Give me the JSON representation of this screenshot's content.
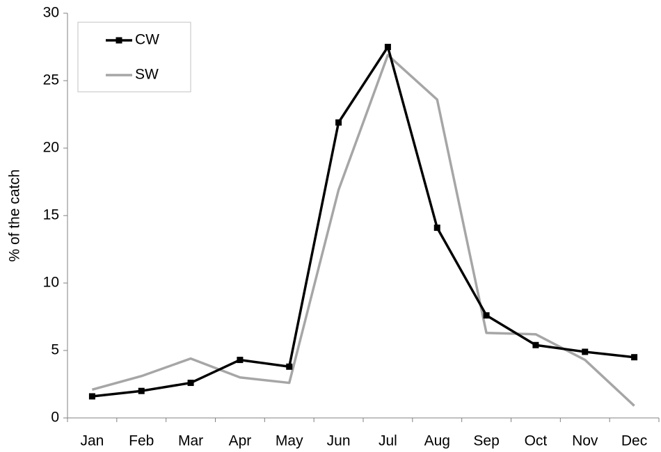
{
  "chart_data": {
    "type": "line",
    "y_label": "% of the catch",
    "categories": [
      "Jan",
      "Feb",
      "Mar",
      "Apr",
      "May",
      "Jun",
      "Jul",
      "Aug",
      "Sep",
      "Oct",
      "Nov",
      "Dec"
    ],
    "series": [
      {
        "name": "CW",
        "color": "#000000",
        "marker": "square",
        "values": [
          1.6,
          2.0,
          2.6,
          4.3,
          3.8,
          21.9,
          27.5,
          14.1,
          7.6,
          5.4,
          4.9,
          4.5
        ]
      },
      {
        "name": "SW",
        "color": "#a6a6a6",
        "marker": "none",
        "values": [
          2.1,
          3.1,
          4.4,
          3.0,
          2.6,
          16.9,
          26.9,
          23.6,
          6.3,
          6.2,
          4.3,
          0.9
        ]
      }
    ],
    "ylim": [
      0,
      30
    ],
    "yticks": [
      0,
      5,
      10,
      15,
      20,
      25,
      30
    ],
    "grid": false,
    "legend": "upper left"
  }
}
